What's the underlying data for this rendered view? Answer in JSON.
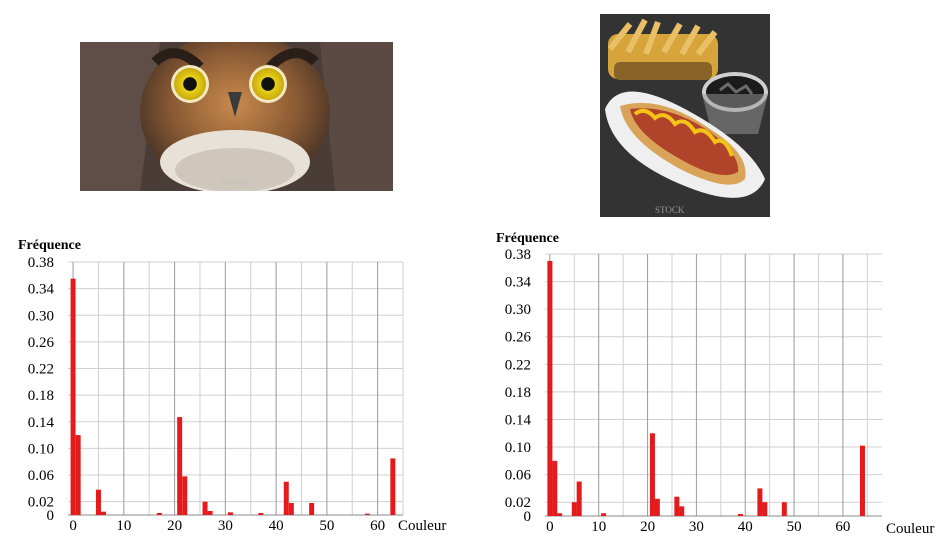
{
  "photos": [
    {
      "name": "owl-photo",
      "watermark": "STOCK"
    },
    {
      "name": "hotdog-fries-soda-photo",
      "watermark": "STOCK"
    }
  ],
  "colors": {
    "bar": "#e41a1c",
    "grid_major": "#9a9a9a",
    "grid_minor": "#d0d0d0"
  },
  "chart_data": [
    {
      "type": "bar",
      "ylabel": "Fréquence",
      "xlabel": "Couleur",
      "xlim": [
        -1,
        65
      ],
      "ylim": [
        0,
        0.38
      ],
      "xticks": [
        0,
        10,
        20,
        30,
        40,
        50,
        60
      ],
      "yticks": [
        0,
        0.02,
        0.06,
        0.1,
        0.14,
        0.18,
        0.22,
        0.26,
        0.3,
        0.34,
        0.38
      ],
      "ytick_labels": [
        "0",
        "0.02",
        "0.06",
        "0.10",
        "0.14",
        "0.18",
        "0.22",
        "0.26",
        "0.30",
        "0.34",
        "0.38"
      ],
      "x": [
        0,
        1,
        5,
        6,
        17,
        21,
        22,
        26,
        27,
        31,
        37,
        42,
        43,
        47,
        58,
        63
      ],
      "values": [
        0.355,
        0.12,
        0.038,
        0.005,
        0.003,
        0.147,
        0.058,
        0.02,
        0.006,
        0.004,
        0.003,
        0.05,
        0.018,
        0.018,
        0.002,
        0.085
      ]
    },
    {
      "type": "bar",
      "ylabel": "Fréquence",
      "xlabel": "Couleur",
      "xlim": [
        -1,
        68
      ],
      "ylim": [
        0,
        0.38
      ],
      "xticks": [
        0,
        10,
        20,
        30,
        40,
        50,
        60
      ],
      "yticks": [
        0,
        0.02,
        0.06,
        0.1,
        0.14,
        0.18,
        0.22,
        0.26,
        0.3,
        0.34,
        0.38
      ],
      "ytick_labels": [
        "0",
        "0.02",
        "0.06",
        "0.10",
        "0.14",
        "0.18",
        "0.22",
        "0.26",
        "0.30",
        "0.34",
        "0.38"
      ],
      "x": [
        0,
        1,
        2,
        5,
        6,
        11,
        21,
        22,
        26,
        27,
        39,
        43,
        44,
        48,
        64
      ],
      "values": [
        0.37,
        0.08,
        0.004,
        0.02,
        0.05,
        0.004,
        0.12,
        0.025,
        0.028,
        0.014,
        0.003,
        0.04,
        0.02,
        0.02,
        0.102
      ]
    }
  ]
}
